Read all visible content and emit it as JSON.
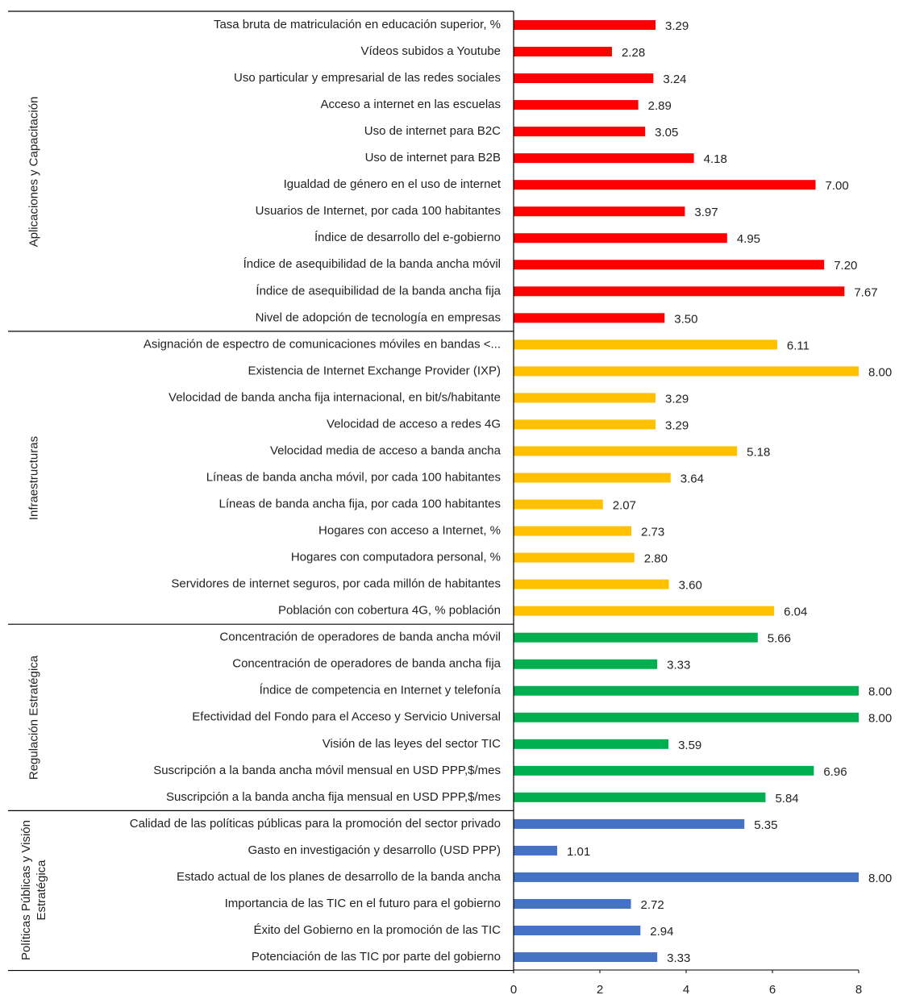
{
  "chart_data": {
    "type": "bar",
    "orientation": "horizontal",
    "xlim": [
      0,
      8
    ],
    "xticks": [
      0,
      2,
      4,
      6,
      8
    ],
    "groups": [
      {
        "name": "Aplicaciones y Capacitación",
        "color": "#ff0000",
        "categories": [
          "Tasa bruta de matriculación en educación superior, %",
          "Vídeos subidos a Youtube",
          "Uso particular y empresarial de las redes sociales",
          "Acceso a internet en las escuelas",
          "Uso de internet para B2C",
          "Uso de internet para B2B",
          "Igualdad de género en el uso de internet",
          "Usuarios de Internet, por cada 100 habitantes",
          "Índice de desarrollo del e-gobierno",
          "Índice de asequibilidad de la banda ancha móvil",
          "Índice de asequibilidad de la banda ancha fija",
          "Nivel de adopción de tecnología en empresas"
        ],
        "values": [
          3.29,
          2.28,
          3.24,
          2.89,
          3.05,
          4.18,
          7.0,
          3.97,
          4.95,
          7.2,
          7.67,
          3.5
        ],
        "value_labels": [
          "3.29",
          "2.28",
          "3.24",
          "2.89",
          "3.05",
          "4.18",
          "7.00",
          "3.97",
          "4.95",
          "7.20",
          "7.67",
          "3.50"
        ]
      },
      {
        "name": "Infraestructuras",
        "color": "#ffc000",
        "categories": [
          "Asignación de espectro de comunicaciones móviles en bandas <...",
          "Existencia de Internet Exchange Provider (IXP)",
          "Velocidad de banda ancha fija internacional, en bit/s/habitante",
          "Velocidad de acceso a redes 4G",
          "Velocidad media de acceso a banda ancha",
          "Líneas de banda ancha móvil, por cada 100 habitantes",
          "Líneas de banda ancha fija, por cada 100 habitantes",
          "Hogares con acceso a Internet, %",
          "Hogares con computadora personal, %",
          "Servidores de internet seguros, por cada millón de habitantes",
          "Población con cobertura 4G, % población"
        ],
        "values": [
          6.11,
          8.0,
          3.29,
          3.29,
          5.18,
          3.64,
          2.07,
          2.73,
          2.8,
          3.6,
          6.04
        ],
        "value_labels": [
          "6.11",
          "8.00",
          "3.29",
          "3.29",
          "5.18",
          "3.64",
          "2.07",
          "2.73",
          "2.80",
          "3.60",
          "6.04"
        ]
      },
      {
        "name": "Regulación Estratégica",
        "color": "#00b050",
        "categories": [
          "Concentración de operadores de banda ancha móvil",
          "Concentración de operadores de banda ancha fija",
          "Índice de competencia en Internet y telefonía",
          "Efectividad del Fondo para el Acceso y Servicio Universal",
          "Visión de las leyes del sector TIC",
          "Suscripción a la banda ancha móvil mensual en USD PPP,$/mes",
          "Suscripción a la banda ancha fija mensual en USD PPP,$/mes"
        ],
        "values": [
          5.66,
          3.33,
          8.0,
          8.0,
          3.59,
          6.96,
          5.84
        ],
        "value_labels": [
          "5.66",
          "3.33",
          "8.00",
          "8.00",
          "3.59",
          "6.96",
          "5.84"
        ]
      },
      {
        "name": "Políticas Públicas y Visión Estratégica",
        "color": "#4472c4",
        "categories": [
          "Calidad de las políticas públicas para la promoción del sector privado",
          "Gasto en investigación y desarrollo (USD PPP)",
          "Estado actual de los planes de desarrollo de la banda ancha",
          "Importancia de las TIC en el futuro para el gobierno",
          "Éxito del Gobierno en la promoción de las TIC",
          "Potenciación de las TIC por parte del gobierno"
        ],
        "values": [
          5.35,
          1.01,
          8.0,
          2.72,
          2.94,
          3.33
        ],
        "value_labels": [
          "5.35",
          "1.01",
          "8.00",
          "2.72",
          "2.94",
          "3.33"
        ]
      }
    ]
  }
}
